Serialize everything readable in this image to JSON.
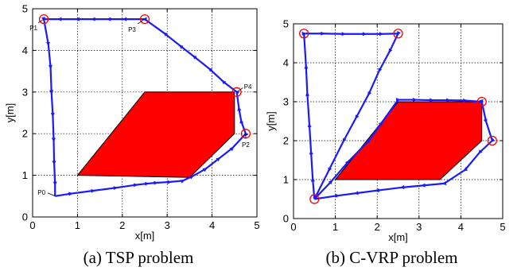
{
  "chart_data": [
    {
      "type": "line",
      "caption": "(a) TSP problem",
      "xlabel": "x[m]",
      "ylabel": "y[m]",
      "xlim": [
        0,
        5
      ],
      "ylim": [
        0,
        5
      ],
      "xticks": [
        "0",
        "1",
        "2",
        "3",
        "4",
        "5"
      ],
      "yticks": [
        "0",
        "1",
        "2",
        "3",
        "4",
        "5"
      ],
      "grid": true,
      "obstacle": {
        "color": "#ff0000",
        "vertices": [
          [
            1.0,
            1.0
          ],
          [
            2.5,
            3.0
          ],
          [
            4.5,
            3.0
          ],
          [
            4.5,
            2.0
          ],
          [
            3.5,
            0.95
          ]
        ]
      },
      "points": [
        {
          "label": "P1",
          "x": 0.25,
          "y": 4.75
        },
        {
          "label": "P2",
          "x": 4.75,
          "y": 2.0
        },
        {
          "label": "P3",
          "x": 2.5,
          "y": 4.75
        },
        {
          "label": "P4",
          "x": 4.55,
          "y": 3.0
        },
        {
          "label": "P0",
          "x": 0.5,
          "y": 0.5
        }
      ],
      "path_color": "#1a1aff",
      "path": [
        [
          0.5,
          0.5
        ],
        [
          0.85,
          0.56
        ],
        [
          1.35,
          0.63
        ],
        [
          1.85,
          0.7
        ],
        [
          2.3,
          0.77
        ],
        [
          2.55,
          0.8
        ],
        [
          2.75,
          0.82
        ],
        [
          3.05,
          0.84
        ],
        [
          3.35,
          0.87
        ],
        [
          3.55,
          0.97
        ],
        [
          3.85,
          1.15
        ],
        [
          4.15,
          1.4
        ],
        [
          4.45,
          1.65
        ],
        [
          4.75,
          2.0
        ],
        [
          4.65,
          2.3
        ],
        [
          4.6,
          2.6
        ],
        [
          4.55,
          3.0
        ],
        [
          4.25,
          3.25
        ],
        [
          3.95,
          3.55
        ],
        [
          3.6,
          3.85
        ],
        [
          3.3,
          4.1
        ],
        [
          2.95,
          4.4
        ],
        [
          2.5,
          4.75
        ],
        [
          2.05,
          4.75
        ],
        [
          1.7,
          4.75
        ],
        [
          1.35,
          4.75
        ],
        [
          1.0,
          4.75
        ],
        [
          0.6,
          4.75
        ],
        [
          0.25,
          4.75
        ],
        [
          0.35,
          4.15
        ],
        [
          0.4,
          3.6
        ],
        [
          0.42,
          3.0
        ],
        [
          0.45,
          2.45
        ],
        [
          0.47,
          1.85
        ],
        [
          0.48,
          1.3
        ],
        [
          0.5,
          0.8
        ],
        [
          0.5,
          0.5
        ]
      ]
    },
    {
      "type": "line",
      "caption": "(b) C-VRP problem",
      "xlabel": "x[m]",
      "ylabel": "y[m]",
      "xlim": [
        0,
        5
      ],
      "ylim": [
        0,
        5
      ],
      "xticks": [
        "0",
        "1",
        "2",
        "3",
        "4",
        "5"
      ],
      "yticks": [
        "0",
        "1",
        "2",
        "3",
        "4",
        "5"
      ],
      "grid": true,
      "obstacle": {
        "color": "#ff0000",
        "vertices": [
          [
            1.0,
            1.0
          ],
          [
            2.5,
            3.0
          ],
          [
            4.5,
            3.0
          ],
          [
            4.5,
            2.0
          ],
          [
            3.5,
            1.0
          ]
        ]
      },
      "points": [
        {
          "label": "",
          "x": 0.25,
          "y": 4.75
        },
        {
          "label": "",
          "x": 2.5,
          "y": 4.75
        },
        {
          "label": "",
          "x": 4.5,
          "y": 3.0
        },
        {
          "label": "",
          "x": 4.75,
          "y": 2.0
        },
        {
          "label": "",
          "x": 0.5,
          "y": 0.5
        }
      ],
      "path_color": "#1a1aff",
      "routes": [
        [
          [
            0.5,
            0.5
          ],
          [
            0.46,
            1.0
          ],
          [
            0.42,
            1.7
          ],
          [
            0.38,
            2.4
          ],
          [
            0.33,
            3.2
          ],
          [
            0.3,
            3.9
          ],
          [
            0.25,
            4.75
          ],
          [
            0.7,
            4.75
          ],
          [
            1.2,
            4.74
          ],
          [
            1.7,
            4.74
          ],
          [
            2.1,
            4.74
          ],
          [
            2.5,
            4.75
          ],
          [
            2.3,
            4.3
          ],
          [
            2.05,
            3.8
          ],
          [
            1.8,
            3.2
          ],
          [
            1.5,
            2.6
          ],
          [
            1.2,
            2.0
          ],
          [
            0.85,
            1.25
          ],
          [
            0.5,
            0.5
          ]
        ],
        [
          [
            0.5,
            0.5
          ],
          [
            0.9,
            0.95
          ],
          [
            1.3,
            1.45
          ],
          [
            1.8,
            2.0
          ],
          [
            2.1,
            2.45
          ],
          [
            2.5,
            3.05
          ],
          [
            2.9,
            3.05
          ],
          [
            3.3,
            3.04
          ],
          [
            3.7,
            3.04
          ],
          [
            4.1,
            3.03
          ],
          [
            4.5,
            3.0
          ],
          [
            4.6,
            2.5
          ],
          [
            4.75,
            2.0
          ],
          [
            4.45,
            1.7
          ],
          [
            4.1,
            1.25
          ],
          [
            3.6,
            0.9
          ],
          [
            3.1,
            0.85
          ],
          [
            2.6,
            0.8
          ],
          [
            2.0,
            0.72
          ],
          [
            1.5,
            0.65
          ],
          [
            1.0,
            0.58
          ],
          [
            0.5,
            0.5
          ]
        ]
      ]
    }
  ]
}
